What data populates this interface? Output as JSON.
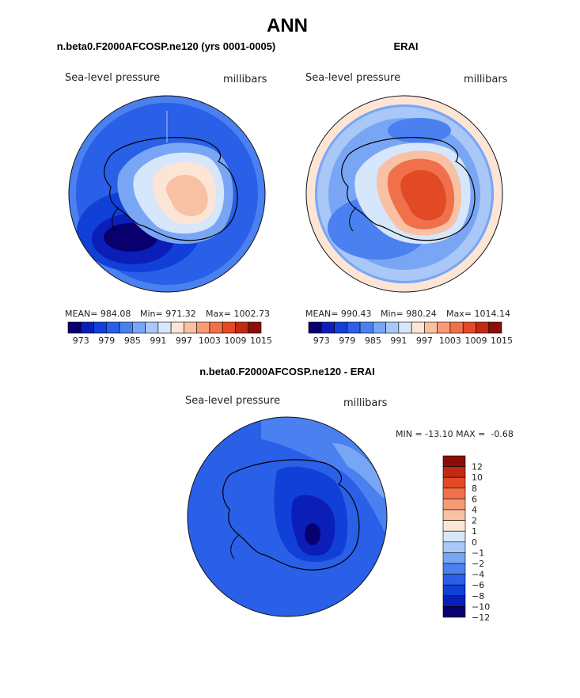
{
  "title": "ANN",
  "colors": {
    "abs_scale": [
      "#08006e",
      "#0b1fb8",
      "#1140d8",
      "#2a5fe8",
      "#4a80f0",
      "#79a6f4",
      "#a9c7f7",
      "#d6e6fb",
      "#fde5d5",
      "#f9c1a3",
      "#f69b76",
      "#f0704c",
      "#e24a26",
      "#c12a12",
      "#8a0d06"
    ],
    "diff_scale": [
      "#08006e",
      "#0b1fb8",
      "#1140d8",
      "#2a5fe8",
      "#4a80f0",
      "#79a6f4",
      "#a9c7f7",
      "#d6e6fb",
      "#fde5d5",
      "#f9c1a3",
      "#f69b76",
      "#f0704c",
      "#e24a26",
      "#c12a12",
      "#8a0d06"
    ]
  },
  "chart_data": [
    {
      "type": "heatmap",
      "projection": "south-polar-stereographic",
      "title": "n.beta0.F2000AFCOSP.ne120 (yrs 0001-0005)",
      "variable_label": "Sea-level pressure",
      "units": "millibars",
      "stats": {
        "mean": "MEAN= 984.08",
        "min": "Min= 971.32",
        "max": "Max= 1002.73"
      },
      "colorbar_ticks": [
        "973",
        "979",
        "985",
        "991",
        "997",
        "1003",
        "1009",
        "1015"
      ],
      "contour_levels": [
        970,
        973,
        976,
        979,
        982,
        985,
        988,
        991,
        994,
        997,
        1000,
        1003,
        1006,
        1009,
        1012,
        1015
      ]
    },
    {
      "type": "heatmap",
      "projection": "south-polar-stereographic",
      "title": "ERAI",
      "variable_label": "Sea-level pressure",
      "units": "millibars",
      "stats": {
        "mean": "MEAN= 990.43",
        "min": "Min= 980.24",
        "max": "Max= 1014.14"
      },
      "colorbar_ticks": [
        "973",
        "979",
        "985",
        "991",
        "997",
        "1003",
        "1009",
        "1015"
      ],
      "contour_levels": [
        970,
        973,
        976,
        979,
        982,
        985,
        988,
        991,
        994,
        997,
        1000,
        1003,
        1006,
        1009,
        1012,
        1015
      ]
    },
    {
      "type": "heatmap",
      "projection": "south-polar-stereographic",
      "title": "n.beta0.F2000AFCOSP.ne120 - ERAI",
      "variable_label": "Sea-level pressure",
      "units": "millibars",
      "minmax_text": "MIN = -13.10 MAX =  -0.68",
      "colorbar_ticks": [
        "12",
        "10",
        "8",
        "6",
        "4",
        "2",
        "1",
        "0",
        "−1",
        "−2",
        "−4",
        "−6",
        "−8",
        "−10",
        "−12"
      ],
      "contour_levels": [
        -14,
        -12,
        -10,
        -8,
        -6,
        -4,
        -2,
        -1,
        0,
        1,
        2,
        4,
        6,
        8,
        10,
        12,
        14
      ]
    }
  ]
}
